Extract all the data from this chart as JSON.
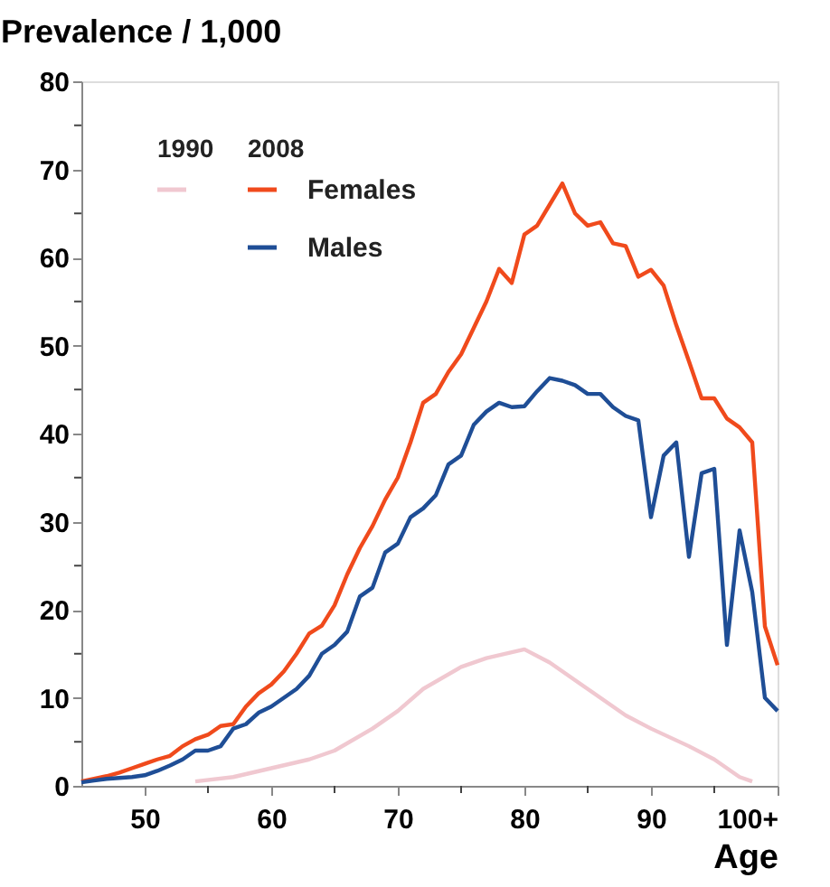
{
  "chart_data": {
    "type": "line",
    "ylabel": "Prevalence / 1,000",
    "xlabel": "Age",
    "annotations": [
      "1990",
      "2008"
    ],
    "x": [
      45,
      46,
      47,
      48,
      49,
      50,
      51,
      52,
      53,
      54,
      55,
      56,
      57,
      58,
      59,
      60,
      61,
      62,
      63,
      64,
      65,
      66,
      67,
      68,
      69,
      70,
      71,
      72,
      73,
      74,
      75,
      76,
      77,
      78,
      79,
      80,
      81,
      82,
      83,
      84,
      85,
      86,
      87,
      88,
      89,
      90,
      91,
      92,
      93,
      94,
      95,
      96,
      97,
      98,
      99,
      100
    ],
    "series": [
      {
        "color": "#f0c8d0",
        "x": [
          54,
          57,
          60,
          63,
          65,
          68,
          70,
          72,
          75,
          77,
          80,
          82,
          85,
          88,
          90,
          93,
          95,
          97,
          98
        ],
        "values": [
          0.5,
          1,
          2,
          3,
          4,
          6.5,
          8.5,
          11,
          13.5,
          14.5,
          15.5,
          14,
          11,
          8,
          6.5,
          4.5,
          3,
          1,
          0.5
        ]
      },
      {
        "name": "Females",
        "color": "#f04a1c",
        "values": [
          0.5,
          0.8,
          1.1,
          1.5,
          2,
          2.5,
          3,
          3.4,
          4.5,
          5.3,
          5.8,
          6.8,
          7,
          9,
          10.5,
          11.5,
          13,
          15,
          17.3,
          18.2,
          20.5,
          24,
          27,
          29.5,
          32.5,
          35,
          39,
          43.5,
          44.5,
          47,
          49,
          52,
          55,
          58.7,
          57.1,
          62.6,
          63.6,
          66,
          68.4,
          65,
          63.6,
          64,
          61.6,
          61.3,
          57.8,
          58.6,
          56.8,
          52.3,
          48.2,
          44,
          44,
          41.7,
          40.7,
          39,
          18.1,
          13.7
        ]
      },
      {
        "name": "Males",
        "color": "#1f4e96",
        "values": [
          0.4,
          0.6,
          0.8,
          0.9,
          1,
          1.2,
          1.7,
          2.3,
          3,
          4,
          4,
          4.5,
          6.5,
          7,
          8.3,
          9,
          10,
          11,
          12.5,
          15,
          16,
          17.5,
          21.5,
          22.5,
          26.5,
          27.5,
          30.5,
          31.5,
          33,
          36.5,
          37.5,
          41,
          42.5,
          43.5,
          43,
          43.1,
          44.8,
          46.3,
          46,
          45.5,
          44.5,
          44.5,
          43,
          42,
          41.5,
          30.5,
          37.5,
          39,
          26,
          35.5,
          36,
          16,
          29,
          22,
          10,
          8.5
        ]
      }
    ],
    "xlim": [
      45,
      100
    ],
    "ylim": [
      0,
      80
    ],
    "xticks": [
      50,
      {
        "value": 55,
        "label": null
      },
      60,
      {
        "value": 65,
        "label": null
      },
      70,
      {
        "value": 75,
        "label": null
      },
      80,
      {
        "value": 85,
        "label": null
      },
      90,
      {
        "value": 95,
        "label": null
      },
      {
        "value": 100,
        "label": "100+"
      }
    ],
    "yticks": [
      0,
      {
        "value": 5,
        "label": null
      },
      10,
      {
        "value": 15,
        "label": null
      },
      20,
      {
        "value": 25,
        "label": null
      },
      30,
      {
        "value": 35,
        "label": null
      },
      40,
      {
        "value": 45,
        "label": null
      },
      50,
      {
        "value": 55,
        "label": null
      },
      60,
      {
        "value": 65,
        "label": null
      },
      70,
      {
        "value": 75,
        "label": null
      },
      80
    ],
    "grid": false,
    "legend": "top left",
    "line_style": "solid",
    "marker": "none"
  }
}
